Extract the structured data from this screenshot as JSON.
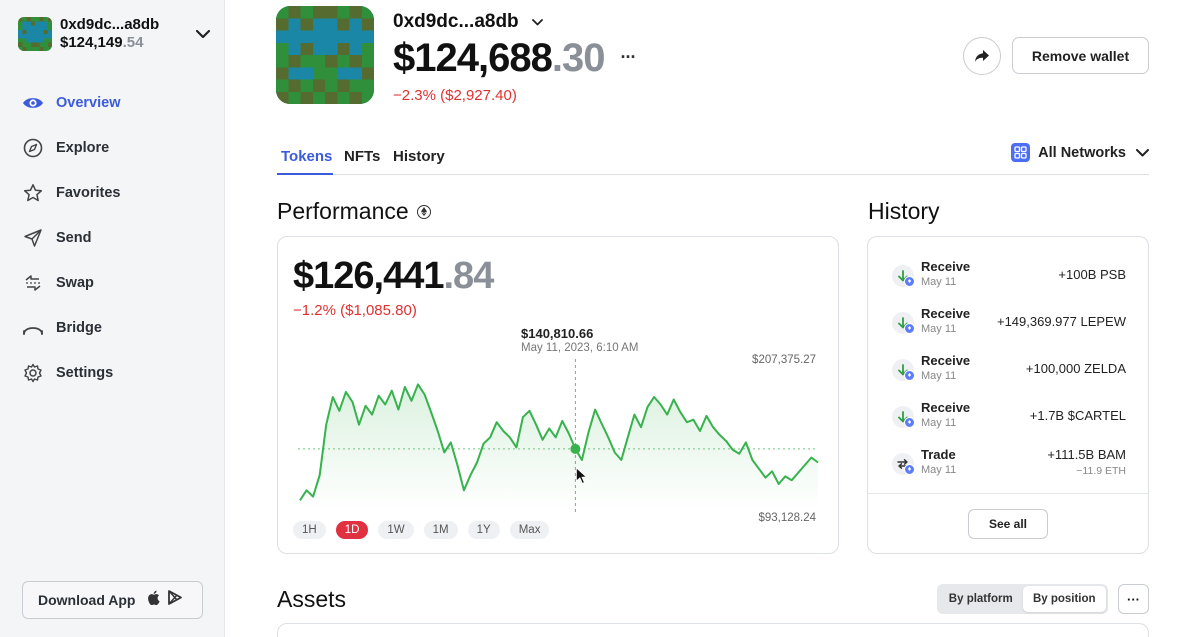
{
  "sidebar": {
    "account_name": "0xd9dc...a8db",
    "account_balance_main": "$124,149",
    "account_balance_dec": ".54",
    "items": [
      {
        "label": "Overview",
        "icon": "eye-icon"
      },
      {
        "label": "Explore",
        "icon": "compass-icon"
      },
      {
        "label": "Favorites",
        "icon": "star-icon"
      },
      {
        "label": "Send",
        "icon": "send-icon"
      },
      {
        "label": "Swap",
        "icon": "swap-icon"
      },
      {
        "label": "Bridge",
        "icon": "bridge-icon"
      },
      {
        "label": "Settings",
        "icon": "gear-icon"
      }
    ],
    "download_label": "Download App"
  },
  "header": {
    "wallet_name": "0xd9dc...a8db",
    "balance_main": "$124,688",
    "balance_dec": ".30",
    "more": "···",
    "change": "−2.3% ($2,927.40)",
    "remove_label": "Remove wallet"
  },
  "tabs": [
    {
      "label": "Tokens"
    },
    {
      "label": "NFTs"
    },
    {
      "label": "History"
    }
  ],
  "networks_label": "All Networks",
  "performance": {
    "title": "Performance",
    "value_main": "$126,441",
    "value_dec": ".84",
    "change": "−1.2% ($1,085.80)",
    "tooltip_value": "$140,810.66",
    "tooltip_date": "May 11, 2023, 6:10 AM",
    "y_max": "$207,375.27",
    "y_min": "$93,128.24",
    "ranges": [
      "1H",
      "1D",
      "1W",
      "1M",
      "1Y",
      "Max"
    ],
    "active_range": "1D"
  },
  "chart_data": {
    "type": "line",
    "color": "#37b24d",
    "ylim": [
      93128.24,
      207375.27
    ],
    "values": [
      100000,
      108000,
      103000,
      120000,
      160000,
      182000,
      171000,
      186000,
      178000,
      160000,
      175000,
      168000,
      183000,
      176000,
      187000,
      172000,
      190000,
      179000,
      192000,
      184000,
      170000,
      155000,
      138000,
      146000,
      128000,
      108000,
      120000,
      130000,
      145000,
      150000,
      162000,
      155000,
      150000,
      142000,
      166000,
      171000,
      160000,
      148000,
      157000,
      150000,
      163000,
      153000,
      140800,
      132000,
      154000,
      172000,
      161000,
      150000,
      138000,
      132000,
      150000,
      168000,
      158000,
      174000,
      182000,
      176000,
      168000,
      180000,
      170000,
      162000,
      164000,
      155000,
      167000,
      158000,
      152000,
      147000,
      140000,
      137000,
      146000,
      132000,
      125000,
      118000,
      123000,
      113000,
      119000,
      116000,
      122000,
      128000,
      134000,
      130000
    ],
    "baseline": 140800,
    "marker_value": 140800
  },
  "history": {
    "title": "History",
    "items": [
      {
        "type": "Receive",
        "date": "May 11",
        "amount": "+100B PSB",
        "sub": ""
      },
      {
        "type": "Receive",
        "date": "May 11",
        "amount": "+149,369.977 LEPEW",
        "sub": ""
      },
      {
        "type": "Receive",
        "date": "May 11",
        "amount": "+100,000 ZELDA",
        "sub": ""
      },
      {
        "type": "Receive",
        "date": "May 11",
        "amount": "+1.7B $CARTEL",
        "sub": ""
      },
      {
        "type": "Trade",
        "date": "May 11",
        "amount": "+111.5B BAM",
        "sub": "−11.9 ETH"
      }
    ],
    "see_all": "See all"
  },
  "assets": {
    "title": "Assets",
    "by_platform": "By platform",
    "by_position": "By position",
    "more": "···"
  },
  "colors": {
    "accent": "#3b5bdb",
    "negative": "#e03131",
    "chart_line": "#37b24d",
    "active_range": "#e03141"
  }
}
